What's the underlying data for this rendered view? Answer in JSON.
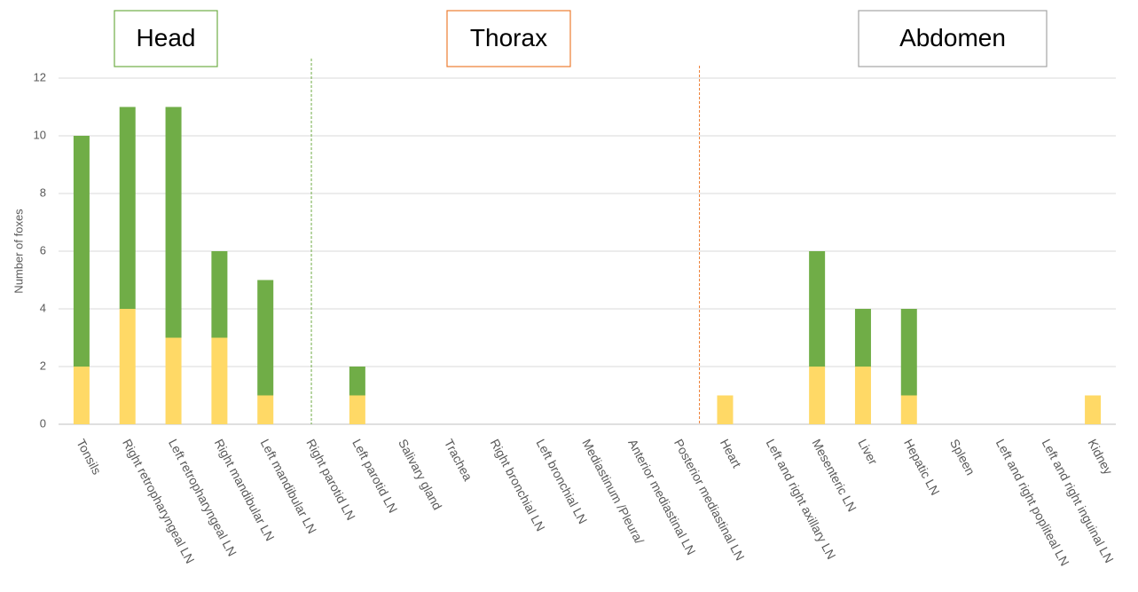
{
  "chart_data": {
    "type": "stacked_bar",
    "y_label": "Number of foxes",
    "categories": [
      "Tonsils",
      "Right retropharyngeal LN",
      "Left retropharyngeal LN",
      "Right mandibular LN",
      "Left mandibular LN",
      "Right parotid LN",
      "Left parotid LN",
      "Salivary gland",
      "Trachea",
      "Right bronchial LN",
      "Left bronchial LN",
      "Mediastinum /Pleura/",
      "Anterior mediastinal LN",
      "Posterior mediastinal LN",
      "Heart",
      "Left and right axillary LN",
      "Mesenteric LN",
      "Liver",
      "Hepatic LN",
      "Spleen",
      "Left and right popliteal LN",
      "Left and right inguinal LN",
      "Kidney"
    ],
    "series": [
      {
        "color": "#ffd966",
        "values": [
          2,
          4,
          3,
          3,
          1,
          0,
          1,
          0,
          0,
          0,
          0,
          0,
          0,
          0,
          1,
          0,
          2,
          2,
          1,
          0,
          0,
          0,
          1
        ]
      },
      {
        "color": "#70ad47",
        "values": [
          8,
          7,
          8,
          3,
          4,
          0,
          1,
          0,
          0,
          0,
          0,
          0,
          0,
          0,
          0,
          0,
          4,
          2,
          3,
          0,
          0,
          0,
          0
        ]
      }
    ],
    "ylim": [
      0,
      12
    ],
    "yticks": [
      0,
      2,
      4,
      6,
      8,
      10,
      12
    ],
    "grid": true,
    "annotations": [
      {
        "text": "Head",
        "color": "#70ad47"
      },
      {
        "text": "Thorax",
        "color": "#ed7d31"
      },
      {
        "text": "Abdomen",
        "color": "#a5a5a5"
      }
    ]
  }
}
